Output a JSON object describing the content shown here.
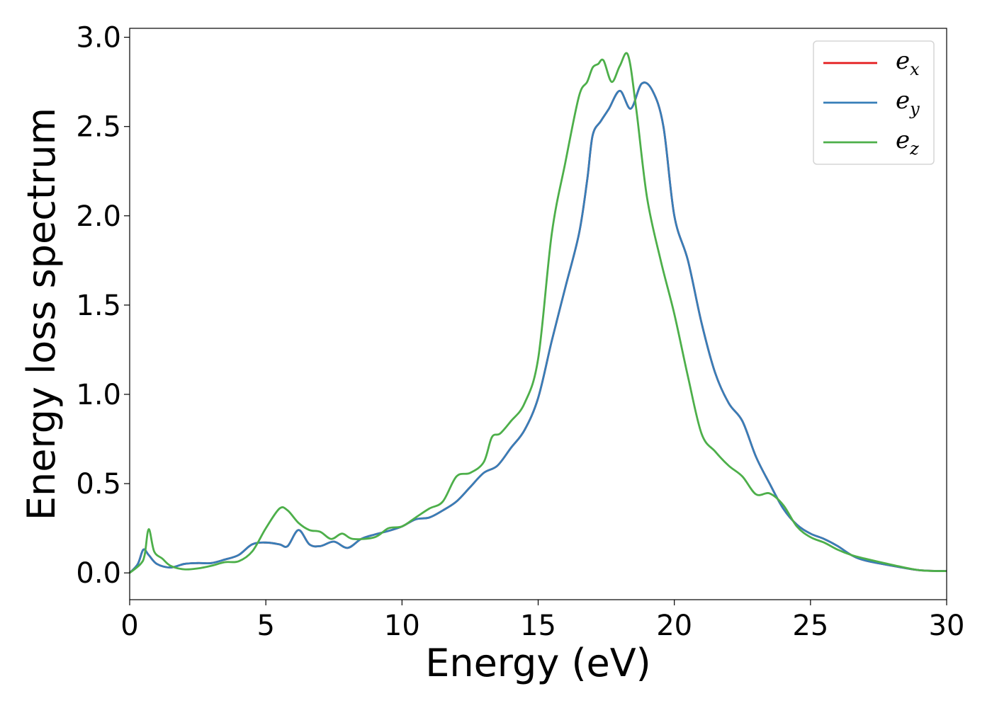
{
  "chart_data": {
    "type": "line",
    "title": "",
    "xlabel": "Energy (eV)",
    "ylabel": "Energy loss spectrum",
    "xlim": [
      0,
      30
    ],
    "ylim": [
      -0.15,
      3.05
    ],
    "xticks": [
      0,
      5,
      10,
      15,
      20,
      25,
      30
    ],
    "xtick_labels": [
      "0",
      "5",
      "10",
      "15",
      "20",
      "25",
      "30"
    ],
    "yticks": [
      0.0,
      0.5,
      1.0,
      1.5,
      2.0,
      2.5,
      3.0
    ],
    "ytick_labels": [
      "0.0",
      "0.5",
      "1.0",
      "1.5",
      "2.0",
      "2.5",
      "3.0"
    ],
    "grid": false,
    "legend_position": "top-right",
    "series": [
      {
        "name": "e_x",
        "legend_base": "e",
        "legend_sub": "x",
        "color": "#e41a1c",
        "points": [
          [
            0,
            0
          ],
          [
            0.3,
            0.05
          ],
          [
            0.5,
            0.13
          ],
          [
            0.7,
            0.1
          ],
          [
            1,
            0.05
          ],
          [
            1.5,
            0.03
          ],
          [
            2,
            0.05
          ],
          [
            2.5,
            0.055
          ],
          [
            3,
            0.055
          ],
          [
            3.5,
            0.075
          ],
          [
            4,
            0.1
          ],
          [
            4.5,
            0.16
          ],
          [
            5,
            0.17
          ],
          [
            5.5,
            0.16
          ],
          [
            5.8,
            0.15
          ],
          [
            6.2,
            0.24
          ],
          [
            6.6,
            0.16
          ],
          [
            7,
            0.15
          ],
          [
            7.5,
            0.175
          ],
          [
            8,
            0.14
          ],
          [
            8.5,
            0.19
          ],
          [
            9,
            0.215
          ],
          [
            9.5,
            0.235
          ],
          [
            10,
            0.26
          ],
          [
            10.5,
            0.3
          ],
          [
            11,
            0.31
          ],
          [
            11.5,
            0.35
          ],
          [
            12,
            0.4
          ],
          [
            12.5,
            0.48
          ],
          [
            13,
            0.56
          ],
          [
            13.5,
            0.6
          ],
          [
            14,
            0.7
          ],
          [
            14.5,
            0.8
          ],
          [
            15,
            0.98
          ],
          [
            15.5,
            1.3
          ],
          [
            16,
            1.6
          ],
          [
            16.5,
            1.9
          ],
          [
            16.8,
            2.2
          ],
          [
            17,
            2.45
          ],
          [
            17.3,
            2.53
          ],
          [
            17.6,
            2.6
          ],
          [
            18,
            2.7
          ],
          [
            18.4,
            2.6
          ],
          [
            18.8,
            2.74
          ],
          [
            19.2,
            2.7
          ],
          [
            19.6,
            2.5
          ],
          [
            20,
            2.0
          ],
          [
            20.5,
            1.75
          ],
          [
            21,
            1.4
          ],
          [
            21.5,
            1.12
          ],
          [
            22,
            0.95
          ],
          [
            22.5,
            0.85
          ],
          [
            23,
            0.65
          ],
          [
            23.5,
            0.5
          ],
          [
            24,
            0.36
          ],
          [
            24.5,
            0.27
          ],
          [
            25,
            0.22
          ],
          [
            25.5,
            0.19
          ],
          [
            26,
            0.15
          ],
          [
            26.5,
            0.1
          ],
          [
            27,
            0.07
          ],
          [
            28,
            0.04
          ],
          [
            29,
            0.015
          ],
          [
            30,
            0.01
          ]
        ]
      },
      {
        "name": "e_y",
        "legend_base": "e",
        "legend_sub": "y",
        "color": "#377eb8",
        "points": [
          [
            0,
            0
          ],
          [
            0.3,
            0.05
          ],
          [
            0.5,
            0.13
          ],
          [
            0.7,
            0.1
          ],
          [
            1,
            0.05
          ],
          [
            1.5,
            0.03
          ],
          [
            2,
            0.05
          ],
          [
            2.5,
            0.055
          ],
          [
            3,
            0.055
          ],
          [
            3.5,
            0.075
          ],
          [
            4,
            0.1
          ],
          [
            4.5,
            0.16
          ],
          [
            5,
            0.17
          ],
          [
            5.5,
            0.16
          ],
          [
            5.8,
            0.15
          ],
          [
            6.2,
            0.24
          ],
          [
            6.6,
            0.16
          ],
          [
            7,
            0.15
          ],
          [
            7.5,
            0.175
          ],
          [
            8,
            0.14
          ],
          [
            8.5,
            0.19
          ],
          [
            9,
            0.215
          ],
          [
            9.5,
            0.235
          ],
          [
            10,
            0.26
          ],
          [
            10.5,
            0.3
          ],
          [
            11,
            0.31
          ],
          [
            11.5,
            0.35
          ],
          [
            12,
            0.4
          ],
          [
            12.5,
            0.48
          ],
          [
            13,
            0.56
          ],
          [
            13.5,
            0.6
          ],
          [
            14,
            0.7
          ],
          [
            14.5,
            0.8
          ],
          [
            15,
            0.98
          ],
          [
            15.5,
            1.3
          ],
          [
            16,
            1.6
          ],
          [
            16.5,
            1.9
          ],
          [
            16.8,
            2.2
          ],
          [
            17,
            2.45
          ],
          [
            17.3,
            2.53
          ],
          [
            17.6,
            2.6
          ],
          [
            18,
            2.7
          ],
          [
            18.4,
            2.6
          ],
          [
            18.8,
            2.74
          ],
          [
            19.2,
            2.7
          ],
          [
            19.6,
            2.5
          ],
          [
            20,
            2.0
          ],
          [
            20.5,
            1.75
          ],
          [
            21,
            1.4
          ],
          [
            21.5,
            1.12
          ],
          [
            22,
            0.95
          ],
          [
            22.5,
            0.85
          ],
          [
            23,
            0.65
          ],
          [
            23.5,
            0.5
          ],
          [
            24,
            0.36
          ],
          [
            24.5,
            0.27
          ],
          [
            25,
            0.22
          ],
          [
            25.5,
            0.19
          ],
          [
            26,
            0.15
          ],
          [
            26.5,
            0.1
          ],
          [
            27,
            0.07
          ],
          [
            28,
            0.04
          ],
          [
            29,
            0.015
          ],
          [
            30,
            0.01
          ]
        ]
      },
      {
        "name": "e_z",
        "legend_base": "e",
        "legend_sub": "z",
        "color": "#4daf4a",
        "points": [
          [
            0,
            0
          ],
          [
            0.4,
            0.05
          ],
          [
            0.55,
            0.1
          ],
          [
            0.7,
            0.245
          ],
          [
            0.9,
            0.12
          ],
          [
            1.2,
            0.08
          ],
          [
            1.5,
            0.04
          ],
          [
            2,
            0.02
          ],
          [
            2.5,
            0.025
          ],
          [
            3,
            0.04
          ],
          [
            3.5,
            0.06
          ],
          [
            4,
            0.065
          ],
          [
            4.5,
            0.12
          ],
          [
            5,
            0.25
          ],
          [
            5.5,
            0.36
          ],
          [
            5.8,
            0.35
          ],
          [
            6.2,
            0.28
          ],
          [
            6.6,
            0.24
          ],
          [
            7,
            0.23
          ],
          [
            7.4,
            0.19
          ],
          [
            7.8,
            0.22
          ],
          [
            8.2,
            0.19
          ],
          [
            9,
            0.2
          ],
          [
            9.5,
            0.25
          ],
          [
            10,
            0.26
          ],
          [
            10.5,
            0.31
          ],
          [
            11,
            0.36
          ],
          [
            11.5,
            0.4
          ],
          [
            12,
            0.54
          ],
          [
            12.5,
            0.56
          ],
          [
            13,
            0.62
          ],
          [
            13.3,
            0.76
          ],
          [
            13.6,
            0.78
          ],
          [
            14,
            0.85
          ],
          [
            14.5,
            0.95
          ],
          [
            15,
            1.2
          ],
          [
            15.5,
            1.9
          ],
          [
            16,
            2.3
          ],
          [
            16.5,
            2.67
          ],
          [
            16.8,
            2.75
          ],
          [
            17,
            2.83
          ],
          [
            17.2,
            2.85
          ],
          [
            17.4,
            2.87
          ],
          [
            17.7,
            2.75
          ],
          [
            18,
            2.84
          ],
          [
            18.3,
            2.9
          ],
          [
            18.6,
            2.6
          ],
          [
            19,
            2.1
          ],
          [
            19.5,
            1.75
          ],
          [
            20,
            1.45
          ],
          [
            20.5,
            1.1
          ],
          [
            21,
            0.78
          ],
          [
            21.5,
            0.68
          ],
          [
            22,
            0.6
          ],
          [
            22.5,
            0.54
          ],
          [
            23,
            0.44
          ],
          [
            23.5,
            0.445
          ],
          [
            24,
            0.38
          ],
          [
            24.5,
            0.26
          ],
          [
            25,
            0.2
          ],
          [
            25.5,
            0.17
          ],
          [
            26,
            0.13
          ],
          [
            26.5,
            0.1
          ],
          [
            27,
            0.08
          ],
          [
            28,
            0.045
          ],
          [
            29,
            0.015
          ],
          [
            30,
            0.01
          ]
        ]
      }
    ]
  }
}
